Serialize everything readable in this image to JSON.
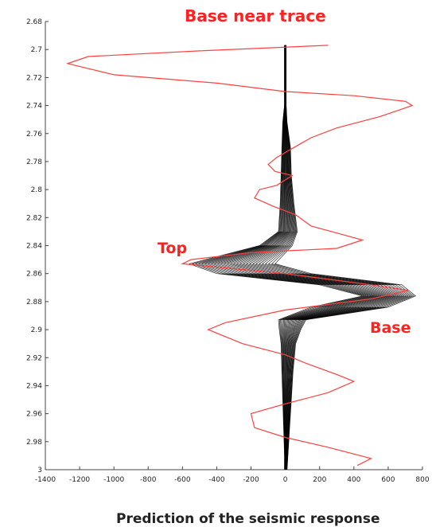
{
  "chart_data": {
    "type": "line",
    "title": "",
    "xlabel": "",
    "ylabel": "",
    "orientation": "vertical-time-down",
    "xlim": [
      -1400,
      800
    ],
    "ylim": [
      2.68,
      3.0
    ],
    "y_inverted": true,
    "grid": false,
    "x_ticks": [
      "-1400",
      "-1200",
      "-1000",
      "-800",
      "-600",
      "-400",
      "-200",
      "0",
      "200",
      "400",
      "600",
      "800"
    ],
    "y_ticks": [
      "2.68",
      "2.7",
      "2.72",
      "2.74",
      "2.76",
      "2.78",
      "2.8",
      "2.82",
      "2.84",
      "2.86",
      "2.88",
      "2.9",
      "2.92",
      "2.94",
      "2.96",
      "2.98",
      "3"
    ],
    "annotations": {
      "near_trace": "Base near trace",
      "top": "Top",
      "base": "Base"
    },
    "caption": "Prediction of the seismic response",
    "colors": {
      "near_trace": "#ff4040",
      "ensemble": "#000000",
      "annotation": "#ff2020"
    },
    "series": [
      {
        "kind": "near_trace",
        "points": [
          [
            250,
            2.697
          ],
          [
            -500,
            2.701
          ],
          [
            -1150,
            2.705
          ],
          [
            -1270,
            2.71
          ],
          [
            -1000,
            2.718
          ],
          [
            -400,
            2.724
          ],
          [
            0,
            2.73
          ],
          [
            400,
            2.733
          ],
          [
            700,
            2.737
          ],
          [
            740,
            2.74
          ],
          [
            550,
            2.748
          ],
          [
            300,
            2.756
          ],
          [
            150,
            2.763
          ],
          [
            50,
            2.77
          ],
          [
            -50,
            2.777
          ],
          [
            -100,
            2.782
          ],
          [
            -60,
            2.787
          ],
          [
            40,
            2.79
          ],
          [
            -50,
            2.797
          ],
          [
            -150,
            2.8
          ],
          [
            -180,
            2.806
          ],
          [
            -70,
            2.812
          ],
          [
            60,
            2.818
          ],
          [
            150,
            2.826
          ],
          [
            300,
            2.831
          ],
          [
            450,
            2.836
          ],
          [
            300,
            2.842
          ],
          [
            -200,
            2.845
          ],
          [
            -550,
            2.85
          ],
          [
            -600,
            2.853
          ],
          [
            0,
            2.86
          ],
          [
            500,
            2.868
          ],
          [
            720,
            2.872
          ],
          [
            500,
            2.878
          ],
          [
            0,
            2.886
          ],
          [
            -350,
            2.895
          ],
          [
            -450,
            2.9
          ],
          [
            -250,
            2.91
          ],
          [
            0,
            2.918
          ],
          [
            120,
            2.924
          ],
          [
            300,
            2.932
          ],
          [
            400,
            2.937
          ],
          [
            250,
            2.945
          ],
          [
            0,
            2.953
          ],
          [
            -200,
            2.96
          ],
          [
            -180,
            2.97
          ],
          [
            0,
            2.977
          ],
          [
            250,
            2.984
          ],
          [
            500,
            2.992
          ],
          [
            420,
            2.997
          ]
        ]
      },
      {
        "kind": "ensemble_envelope",
        "points": [
          [
            [
              -5,
              5
            ],
            2.697
          ],
          [
            [
              -5,
              5
            ],
            2.74
          ],
          [
            [
              -15,
              10
            ],
            2.752
          ],
          [
            [
              -20,
              30
            ],
            2.77
          ],
          [
            [
              -25,
              35
            ],
            2.79
          ],
          [
            [
              -30,
              50
            ],
            2.81
          ],
          [
            [
              -40,
              70
            ],
            2.83
          ],
          [
            [
              -150,
              40
            ],
            2.84
          ],
          [
            [
              -560,
              -60
            ],
            2.853
          ],
          [
            [
              -400,
              150
            ],
            2.86
          ],
          [
            [
              200,
              680
            ],
            2.868
          ],
          [
            [
              450,
              760
            ],
            2.876
          ],
          [
            [
              150,
              600
            ],
            2.884
          ],
          [
            [
              -40,
              120
            ],
            2.893
          ],
          [
            [
              -35,
              90
            ],
            2.9
          ],
          [
            [
              -25,
              60
            ],
            2.91
          ],
          [
            [
              -20,
              45
            ],
            2.93
          ],
          [
            [
              -15,
              35
            ],
            2.95
          ],
          [
            [
              -10,
              25
            ],
            2.97
          ],
          [
            [
              -5,
              15
            ],
            2.99
          ],
          [
            [
              -5,
              10
            ],
            3.0
          ]
        ]
      }
    ]
  }
}
